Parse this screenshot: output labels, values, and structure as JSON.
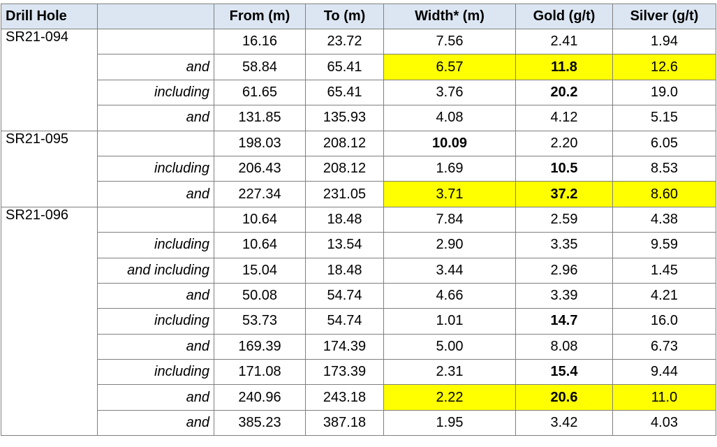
{
  "columns": [
    "Drill Hole",
    "",
    "From (m)",
    "To (m)",
    "Width* (m)",
    "Gold (g/t)",
    "Silver (g/t)"
  ],
  "colors": {
    "header_bg": "#dce6f2",
    "highlight": "#ffff00",
    "border": "#7f7f7f"
  },
  "groups": [
    {
      "hole": "SR21-094",
      "rows": [
        {
          "qualifier": "",
          "from": "16.16",
          "to": "23.72",
          "width": "7.56",
          "gold": "2.41",
          "silver": "1.94",
          "highlight": false,
          "bold_width": false,
          "bold_gold": false
        },
        {
          "qualifier": "and",
          "from": "58.84",
          "to": "65.41",
          "width": "6.57",
          "gold": "11.8",
          "silver": "12.6",
          "highlight": true,
          "bold_width": false,
          "bold_gold": true
        },
        {
          "qualifier": "including",
          "from": "61.65",
          "to": "65.41",
          "width": "3.76",
          "gold": "20.2",
          "silver": "19.0",
          "highlight": false,
          "bold_width": false,
          "bold_gold": true
        },
        {
          "qualifier": "and",
          "from": "131.85",
          "to": "135.93",
          "width": "4.08",
          "gold": "4.12",
          "silver": "5.15",
          "highlight": false,
          "bold_width": false,
          "bold_gold": false
        }
      ]
    },
    {
      "hole": "SR21-095",
      "rows": [
        {
          "qualifier": "",
          "from": "198.03",
          "to": "208.12",
          "width": "10.09",
          "gold": "2.20",
          "silver": "6.05",
          "highlight": false,
          "bold_width": true,
          "bold_gold": false
        },
        {
          "qualifier": "including",
          "from": "206.43",
          "to": "208.12",
          "width": "1.69",
          "gold": "10.5",
          "silver": "8.53",
          "highlight": false,
          "bold_width": false,
          "bold_gold": true
        },
        {
          "qualifier": "and",
          "from": "227.34",
          "to": "231.05",
          "width": "3.71",
          "gold": "37.2",
          "silver": "8.60",
          "highlight": true,
          "bold_width": false,
          "bold_gold": true
        }
      ]
    },
    {
      "hole": "SR21-096",
      "rows": [
        {
          "qualifier": "",
          "from": "10.64",
          "to": "18.48",
          "width": "7.84",
          "gold": "2.59",
          "silver": "4.38",
          "highlight": false,
          "bold_width": false,
          "bold_gold": false
        },
        {
          "qualifier": "including",
          "from": "10.64",
          "to": "13.54",
          "width": "2.90",
          "gold": "3.35",
          "silver": "9.59",
          "highlight": false,
          "bold_width": false,
          "bold_gold": false
        },
        {
          "qualifier": "and including",
          "from": "15.04",
          "to": "18.48",
          "width": "3.44",
          "gold": "2.96",
          "silver": "1.45",
          "highlight": false,
          "bold_width": false,
          "bold_gold": false
        },
        {
          "qualifier": "and",
          "from": "50.08",
          "to": "54.74",
          "width": "4.66",
          "gold": "3.39",
          "silver": "4.21",
          "highlight": false,
          "bold_width": false,
          "bold_gold": false
        },
        {
          "qualifier": "including",
          "from": "53.73",
          "to": "54.74",
          "width": "1.01",
          "gold": "14.7",
          "silver": "16.0",
          "highlight": false,
          "bold_width": false,
          "bold_gold": true
        },
        {
          "qualifier": "and",
          "from": "169.39",
          "to": "174.39",
          "width": "5.00",
          "gold": "8.08",
          "silver": "6.73",
          "highlight": false,
          "bold_width": false,
          "bold_gold": false
        },
        {
          "qualifier": "including",
          "from": "171.08",
          "to": "173.39",
          "width": "2.31",
          "gold": "15.4",
          "silver": "9.44",
          "highlight": false,
          "bold_width": false,
          "bold_gold": true
        },
        {
          "qualifier": "and",
          "from": "240.96",
          "to": "243.18",
          "width": "2.22",
          "gold": "20.6",
          "silver": "11.0",
          "highlight": true,
          "bold_width": false,
          "bold_gold": true
        },
        {
          "qualifier": "and",
          "from": "385.23",
          "to": "387.18",
          "width": "1.95",
          "gold": "3.42",
          "silver": "4.03",
          "highlight": false,
          "bold_width": false,
          "bold_gold": false
        }
      ]
    }
  ]
}
